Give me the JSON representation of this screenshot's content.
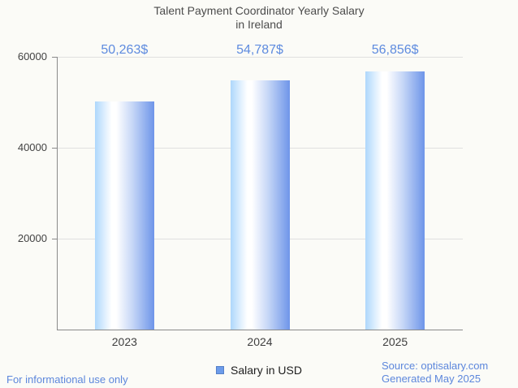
{
  "chart_data": {
    "type": "bar",
    "title": "Talent Payment Coordinator Yearly Salary in Ireland",
    "title_lines": [
      "Talent Payment Coordinator Yearly Salary",
      "in Ireland"
    ],
    "categories": [
      "2023",
      "2024",
      "2025"
    ],
    "series": [
      {
        "name": "Salary in USD",
        "values": [
          50263,
          54787,
          56856
        ]
      }
    ],
    "value_labels": [
      "50,263$",
      "54,787$",
      "56,856$"
    ],
    "xlabel": "",
    "ylabel": "",
    "ylim": [
      0,
      60000
    ],
    "yticks": [
      20000,
      40000,
      60000
    ],
    "ytick_labels": [
      "20000",
      "40000",
      "60000"
    ],
    "grid": true,
    "legend_position": "bottom"
  },
  "legend": {
    "label": "Salary in USD"
  },
  "footer": {
    "disclaimer": "For informational use only",
    "source": "Source: optisalary.com",
    "generated": "Generated May 2025"
  },
  "colors": {
    "accent_blue": "#5e8bdf",
    "footer_blue": "#5d87dc",
    "bar_gradient_left": "#aed7fc",
    "bar_gradient_highlight": "#ffffff",
    "bar_gradient_mid": "#c9d9f7",
    "bar_gradient_right": "#6e95e9",
    "legend_swatch_fill": "#6c9bea",
    "legend_swatch_border": "#5580c7",
    "gridline_gray": "#e0e0e0",
    "axis_gray": "#8a8a8a"
  }
}
